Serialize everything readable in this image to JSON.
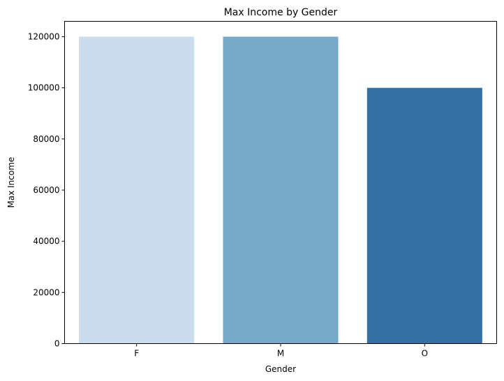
{
  "chart_data": {
    "type": "bar",
    "title": "Max Income by Gender",
    "xlabel": "Gender",
    "ylabel": "Max Income",
    "categories": [
      "F",
      "M",
      "O"
    ],
    "values": [
      120000,
      120000,
      100000
    ],
    "colors": [
      "#cbdcec",
      "#78a9c9",
      "#3470a4"
    ],
    "ylim": [
      0,
      126000
    ],
    "yticks": [
      0,
      20000,
      40000,
      60000,
      80000,
      100000,
      120000
    ],
    "grid": false,
    "legend": "none"
  }
}
